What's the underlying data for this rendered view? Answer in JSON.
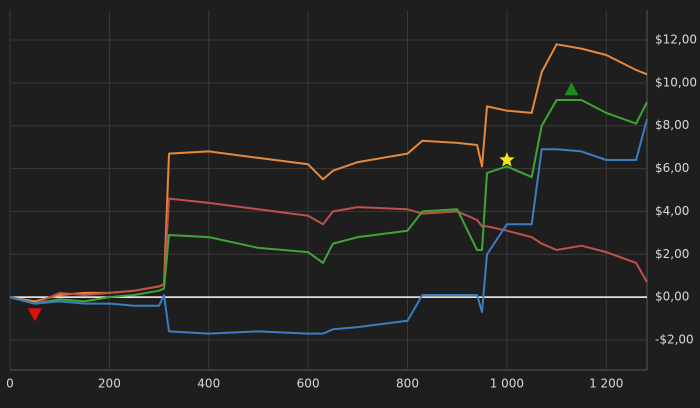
{
  "chart_data": {
    "type": "line",
    "x": [
      0,
      50,
      100,
      150,
      200,
      250,
      300,
      310,
      320,
      400,
      500,
      600,
      630,
      650,
      700,
      800,
      830,
      900,
      940,
      950,
      960,
      1000,
      1050,
      1070,
      1100,
      1150,
      1200,
      1260,
      1282
    ],
    "series": [
      {
        "color": "#e8893a",
        "values": [
          0,
          -0.2,
          0.1,
          0.2,
          0.2,
          0.3,
          0.5,
          0.6,
          6.7,
          6.8,
          6.5,
          6.2,
          5.5,
          5.9,
          6.3,
          6.7,
          7.3,
          7.2,
          7.1,
          6.1,
          8.9,
          8.7,
          8.6,
          10.5,
          11.8,
          11.6,
          11.3,
          10.6,
          10.4
        ]
      },
      {
        "color": "#c0504d",
        "values": [
          0,
          -0.3,
          0.2,
          0.1,
          0.2,
          0.3,
          0.5,
          0.6,
          4.6,
          4.4,
          4.1,
          3.8,
          3.4,
          4.0,
          4.2,
          4.1,
          3.9,
          4.0,
          3.6,
          3.3,
          3.3,
          3.1,
          2.8,
          2.5,
          2.2,
          2.4,
          2.1,
          1.6,
          0.7
        ]
      },
      {
        "color": "#3fa535",
        "values": [
          0,
          -0.3,
          -0.1,
          -0.2,
          0.0,
          0.1,
          0.3,
          0.4,
          2.9,
          2.8,
          2.3,
          2.1,
          1.6,
          2.5,
          2.8,
          3.1,
          4.0,
          4.1,
          2.2,
          2.2,
          5.8,
          6.1,
          5.6,
          8.0,
          9.2,
          9.2,
          8.6,
          8.1,
          9.1
        ]
      },
      {
        "color": "#3a7dc0",
        "values": [
          0,
          -0.3,
          -0.2,
          -0.3,
          -0.3,
          -0.4,
          -0.4,
          0.1,
          -1.6,
          -1.7,
          -1.6,
          -1.7,
          -1.7,
          -1.5,
          -1.4,
          -1.1,
          0.1,
          0.1,
          0.1,
          -0.7,
          2.0,
          3.4,
          3.4,
          6.9,
          6.9,
          6.8,
          6.4,
          6.4,
          8.3
        ]
      }
    ],
    "markers": [
      {
        "x": 50,
        "y": -0.8,
        "shape": "triangle-down",
        "color": "#e01010"
      },
      {
        "x": 1000,
        "y": 6.4,
        "shape": "star",
        "color": "#f5e51b"
      },
      {
        "x": 1130,
        "y": 9.7,
        "shape": "triangle-up",
        "color": "#1f8a1f"
      }
    ],
    "xlim": [
      0,
      1282
    ],
    "ylim": [
      -3.4,
      13.4
    ],
    "xticks": [
      0,
      200,
      400,
      600,
      800,
      {
        "value": 1000,
        "label": "1 000"
      },
      {
        "value": 1200,
        "label": "1 200"
      }
    ],
    "yticks": [
      {
        "value": -2,
        "label": "-$2,00"
      },
      {
        "value": 0,
        "label": "$0,00"
      },
      {
        "value": 2,
        "label": "$2,00"
      },
      {
        "value": 4,
        "label": "$4,00"
      },
      {
        "value": 6,
        "label": "$6,00"
      },
      {
        "value": 8,
        "label": "$8,00"
      },
      {
        "value": 10,
        "label": "$10,00"
      },
      {
        "value": 12,
        "label": "$12,00"
      }
    ],
    "grid": true,
    "y_axis_side": "right",
    "zero_line_color": "#ffffff"
  }
}
